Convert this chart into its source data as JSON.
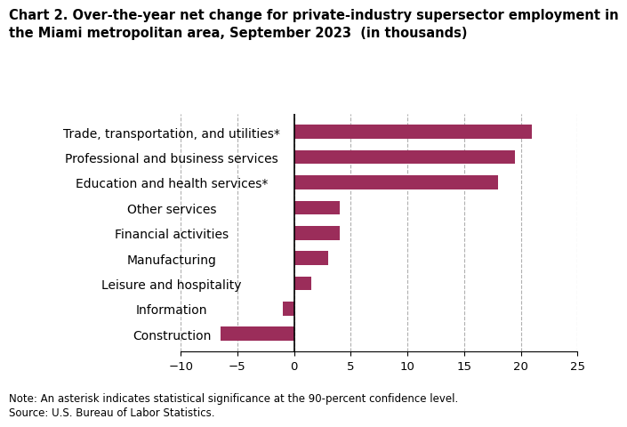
{
  "title": "Chart 2. Over-the-year net change for private-industry supersector employment in\nthe Miami metropolitan area, September 2023  (in thousands)",
  "categories": [
    "Construction",
    "Information",
    "Leisure and hospitality",
    "Manufacturing",
    "Financial activities",
    "Other services",
    "Education and health services*",
    "Professional and business services",
    "Trade, transportation, and utilities*"
  ],
  "values": [
    -6.5,
    -1.0,
    1.5,
    3.0,
    4.0,
    4.0,
    18.0,
    19.5,
    21.0
  ],
  "bar_color": "#9b2d5a",
  "xlim": [
    -10,
    25
  ],
  "xticks": [
    -10,
    -5,
    0,
    5,
    10,
    15,
    20,
    25
  ],
  "note": "Note: An asterisk indicates statistical significance at the 90-percent confidence level.",
  "source": "Source: U.S. Bureau of Labor Statistics.",
  "background_color": "#ffffff",
  "grid_color": "#b0b0b0",
  "title_fontsize": 10.5,
  "label_fontsize": 10,
  "tick_fontsize": 9.5,
  "note_fontsize": 8.5,
  "bar_height": 0.55
}
